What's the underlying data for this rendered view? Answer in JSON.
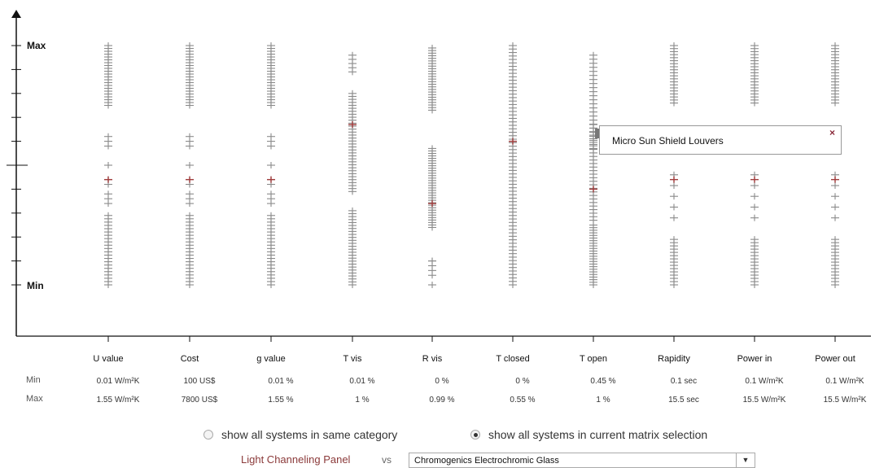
{
  "chart_data": {
    "type": "scatter",
    "y_axis": {
      "max_label": "Max",
      "min_label": "Min"
    },
    "columns": [
      {
        "name": "U value",
        "min": "0.01 W/m²K",
        "max": "1.55 W/m²K",
        "clusters": [
          [
            0.75,
            1.0,
            22
          ],
          [
            0.58,
            0.62,
            3
          ],
          [
            0.5,
            0.5,
            1
          ],
          [
            0.44,
            0.42,
            2
          ],
          [
            0.38,
            0.34,
            3
          ],
          [
            0.29,
            0.0,
            22
          ]
        ],
        "highlight": 0.44
      },
      {
        "name": "Cost",
        "min": "100 US$",
        "max": "7800 US$",
        "clusters": [
          [
            0.75,
            1.0,
            22
          ],
          [
            0.58,
            0.62,
            3
          ],
          [
            0.5,
            0.5,
            1
          ],
          [
            0.44,
            0.42,
            2
          ],
          [
            0.38,
            0.34,
            3
          ],
          [
            0.29,
            0.0,
            22
          ]
        ],
        "highlight": 0.44
      },
      {
        "name": "g value",
        "min": "0.01 %",
        "max": "1.55 %",
        "clusters": [
          [
            0.75,
            1.0,
            22
          ],
          [
            0.58,
            0.62,
            3
          ],
          [
            0.5,
            0.5,
            1
          ],
          [
            0.44,
            0.42,
            2
          ],
          [
            0.38,
            0.34,
            3
          ],
          [
            0.29,
            0.0,
            22
          ]
        ],
        "highlight": 0.44
      },
      {
        "name": "T vis",
        "min": "0.01 %",
        "max": "1 %",
        "clusters": [
          [
            0.96,
            0.89,
            5
          ],
          [
            0.8,
            0.39,
            34
          ],
          [
            0.31,
            0.0,
            26
          ]
        ],
        "highlight": 0.67
      },
      {
        "name": "R vis",
        "min": "0 %",
        "max": "0.99 %",
        "clusters": [
          [
            0.99,
            0.73,
            25
          ],
          [
            0.57,
            0.24,
            33
          ],
          [
            0.1,
            0.0,
            2
          ],
          [
            0.1,
            0.04,
            4
          ]
        ],
        "highlight": 0.34
      },
      {
        "name": "T closed",
        "min": "0 %",
        "max": "0.55 %",
        "clusters": [
          [
            1.0,
            0.0,
            70
          ]
        ],
        "highlight": 0.6
      },
      {
        "name": "T open",
        "min": "0.45 %",
        "max": "1 %",
        "clusters": [
          [
            0.96,
            0.57,
            24
          ],
          [
            0.67,
            0.27,
            28
          ],
          [
            0.25,
            0.0,
            24
          ]
        ],
        "highlight": 0.4
      },
      {
        "name": "Rapidity",
        "min": "0.1 sec",
        "max": "15.5 sec",
        "clusters": [
          [
            1.0,
            0.76,
            20
          ],
          [
            0.46,
            0.28,
            5
          ],
          [
            0.19,
            0.0,
            15
          ]
        ],
        "highlight": 0.44
      },
      {
        "name": "Power in",
        "min": "0.1 W/m²K",
        "max": "15.5 W/m²K",
        "clusters": [
          [
            1.0,
            0.76,
            20
          ],
          [
            0.46,
            0.28,
            5
          ],
          [
            0.19,
            0.0,
            15
          ]
        ],
        "highlight": 0.44
      },
      {
        "name": "Power out",
        "min": "0.1  W/m²K",
        "max": "15.5  W/m²K",
        "clusters": [
          [
            1.0,
            0.76,
            20
          ],
          [
            0.46,
            0.28,
            5
          ],
          [
            0.19,
            0.0,
            15
          ]
        ],
        "highlight": 0.44
      }
    ],
    "row_labels": {
      "min": "Min",
      "max": "Max"
    },
    "colors": {
      "marker": "#8a8a8a",
      "highlight": "#a03c3c",
      "axis": "#111111"
    }
  },
  "tooltip": {
    "label": "Micro Sun Shield Louvers",
    "close": "×"
  },
  "options": {
    "same_category": "show all systems in same category",
    "current_matrix": "show all systems in current matrix selection",
    "selected": "current_matrix"
  },
  "compare": {
    "left": "Light Channeling Panel",
    "vs": "vs",
    "right": "Chromogenics Electrochromic Glass",
    "dropdown_icon": "caret-down-icon"
  }
}
